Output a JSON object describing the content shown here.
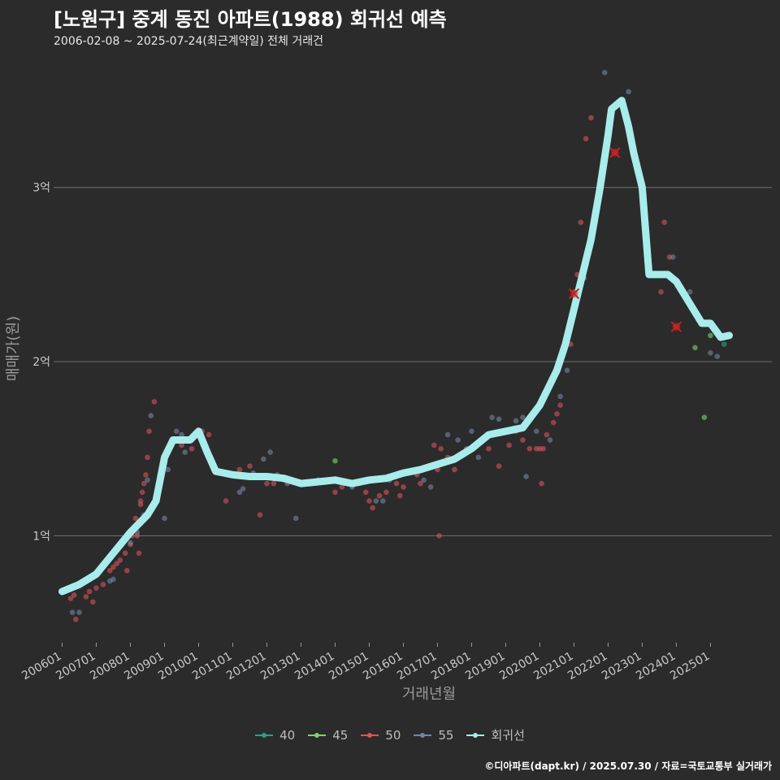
{
  "header": {
    "title": "[노원구] 중계 동진 아파트(1988) 회귀선 예측",
    "subtitle": "2006-02-08 ~ 2025-07-24(최근계약일) 전체 거래건"
  },
  "footer": {
    "text": "©디아파트(dapt.kr) / 2025.07.30 / 자료=국토교통부 실거래가"
  },
  "colors": {
    "background": "#2b2b2b",
    "grid": "#707070",
    "s40": "#2f9e8a",
    "s45": "#7ed36f",
    "s50": "#d9545c",
    "s55": "#7485a3",
    "regression": "#a8ecec",
    "highlight": "#cc1f1f"
  },
  "chart_data": {
    "type": "scatter",
    "title": "[노원구] 중계 동진 아파트(1988) 회귀선 예측",
    "xlabel": "거래년월",
    "ylabel": "매매가(원)",
    "xlim": [
      2005.75,
      2026.8
    ],
    "ylim": [
      0.4,
      3.75
    ],
    "y_unit": "억",
    "grid": true,
    "legend_position": "bottom",
    "x_ticks": [
      {
        "label": "200601",
        "x": 2006.0
      },
      {
        "label": "200701",
        "x": 2007.0
      },
      {
        "label": "200801",
        "x": 2008.0
      },
      {
        "label": "200901",
        "x": 2009.0
      },
      {
        "label": "201001",
        "x": 2010.0
      },
      {
        "label": "201101",
        "x": 2011.0
      },
      {
        "label": "201201",
        "x": 2012.0
      },
      {
        "label": "201301",
        "x": 2013.0
      },
      {
        "label": "201401",
        "x": 2014.0
      },
      {
        "label": "201501",
        "x": 2015.0
      },
      {
        "label": "201601",
        "x": 2016.0
      },
      {
        "label": "201701",
        "x": 2017.0
      },
      {
        "label": "201801",
        "x": 2018.0
      },
      {
        "label": "201901",
        "x": 2019.0
      },
      {
        "label": "202001",
        "x": 2020.0
      },
      {
        "label": "202101",
        "x": 2021.0
      },
      {
        "label": "202201",
        "x": 2022.0
      },
      {
        "label": "202301",
        "x": 2023.0
      },
      {
        "label": "202401",
        "x": 2024.0
      },
      {
        "label": "202501",
        "x": 2025.0
      }
    ],
    "y_ticks": [
      {
        "label": "1억",
        "y": 1
      },
      {
        "label": "2억",
        "y": 2
      },
      {
        "label": "3억",
        "y": 3
      }
    ],
    "legend": [
      {
        "name": "40",
        "key": "s40"
      },
      {
        "name": "45",
        "key": "s45"
      },
      {
        "name": "50",
        "key": "s50"
      },
      {
        "name": "55",
        "key": "s55"
      },
      {
        "name": "회귀선",
        "key": "regression"
      }
    ],
    "series": [
      {
        "name": "40",
        "key": "s40",
        "points": [
          [
            2025.4,
            2.1
          ]
        ]
      },
      {
        "name": "45",
        "key": "s45",
        "points": [
          [
            2014.0,
            1.43
          ],
          [
            2024.55,
            2.08
          ],
          [
            2025.0,
            2.15
          ],
          [
            2024.82,
            1.68
          ]
        ]
      },
      {
        "name": "50",
        "key": "s50",
        "points": [
          [
            2006.25,
            0.64
          ],
          [
            2006.35,
            0.66
          ],
          [
            2006.4,
            0.52
          ],
          [
            2006.5,
            0.72
          ],
          [
            2006.7,
            0.65
          ],
          [
            2006.8,
            0.68
          ],
          [
            2006.9,
            0.62
          ],
          [
            2007.0,
            0.7
          ],
          [
            2007.2,
            0.72
          ],
          [
            2007.4,
            0.8
          ],
          [
            2007.5,
            0.82
          ],
          [
            2007.6,
            0.84
          ],
          [
            2007.7,
            0.86
          ],
          [
            2007.85,
            0.9
          ],
          [
            2007.9,
            0.8
          ],
          [
            2008.0,
            0.95
          ],
          [
            2008.05,
            1.0
          ],
          [
            2008.1,
            1.05
          ],
          [
            2008.15,
            1.1
          ],
          [
            2008.2,
            1.0
          ],
          [
            2008.25,
            0.9
          ],
          [
            2008.3,
            1.2
          ],
          [
            2008.35,
            1.25
          ],
          [
            2008.4,
            1.3
          ],
          [
            2008.45,
            1.35
          ],
          [
            2008.5,
            1.45
          ],
          [
            2008.55,
            1.6
          ],
          [
            2008.7,
            1.77
          ],
          [
            2008.3,
            1.18
          ],
          [
            2009.5,
            1.52
          ],
          [
            2009.8,
            1.5
          ],
          [
            2010.1,
            1.6
          ],
          [
            2010.3,
            1.58
          ],
          [
            2010.8,
            1.2
          ],
          [
            2011.2,
            1.38
          ],
          [
            2011.5,
            1.4
          ],
          [
            2011.8,
            1.12
          ],
          [
            2012.0,
            1.3
          ],
          [
            2012.2,
            1.3
          ],
          [
            2012.5,
            1.32
          ],
          [
            2014.0,
            1.25
          ],
          [
            2014.2,
            1.28
          ],
          [
            2014.7,
            1.3
          ],
          [
            2014.9,
            1.25
          ],
          [
            2015.0,
            1.2
          ],
          [
            2015.1,
            1.16
          ],
          [
            2015.3,
            1.23
          ],
          [
            2015.5,
            1.25
          ],
          [
            2015.8,
            1.3
          ],
          [
            2015.9,
            1.23
          ],
          [
            2016.0,
            1.28
          ],
          [
            2016.4,
            1.35
          ],
          [
            2016.5,
            1.3
          ],
          [
            2016.9,
            1.52
          ],
          [
            2017.0,
            1.38
          ],
          [
            2017.05,
            1.0
          ],
          [
            2017.1,
            1.5
          ],
          [
            2017.3,
            1.45
          ],
          [
            2017.5,
            1.38
          ],
          [
            2018.5,
            1.5
          ],
          [
            2018.8,
            1.4
          ],
          [
            2019.1,
            1.52
          ],
          [
            2019.3,
            1.6
          ],
          [
            2019.5,
            1.55
          ],
          [
            2019.7,
            1.5
          ],
          [
            2019.9,
            1.5
          ],
          [
            2020.0,
            1.5
          ],
          [
            2020.05,
            1.3
          ],
          [
            2020.1,
            1.5
          ],
          [
            2020.2,
            1.58
          ],
          [
            2020.4,
            1.65
          ],
          [
            2020.5,
            1.7
          ],
          [
            2020.6,
            1.75
          ],
          [
            2020.9,
            2.1
          ],
          [
            2021.0,
            2.4
          ],
          [
            2021.1,
            2.5
          ],
          [
            2021.2,
            2.8
          ],
          [
            2021.35,
            3.28
          ],
          [
            2021.5,
            3.4
          ],
          [
            2022.0,
            3.27
          ],
          [
            2022.2,
            3.2
          ],
          [
            2023.55,
            2.4
          ],
          [
            2023.65,
            2.8
          ],
          [
            2023.8,
            2.6
          ],
          [
            2024.0,
            2.2
          ]
        ]
      },
      {
        "name": "55",
        "key": "s55",
        "points": [
          [
            2006.3,
            0.56
          ],
          [
            2006.5,
            0.56
          ],
          [
            2007.4,
            0.74
          ],
          [
            2007.5,
            0.75
          ],
          [
            2008.0,
            0.96
          ],
          [
            2008.2,
            1.02
          ],
          [
            2008.3,
            1.07
          ],
          [
            2008.4,
            1.12
          ],
          [
            2008.5,
            1.32
          ],
          [
            2008.6,
            1.69
          ],
          [
            2009.0,
            1.1
          ],
          [
            2009.1,
            1.38
          ],
          [
            2009.35,
            1.6
          ],
          [
            2009.5,
            1.58
          ],
          [
            2009.6,
            1.48
          ],
          [
            2011.2,
            1.25
          ],
          [
            2011.3,
            1.27
          ],
          [
            2011.6,
            1.36
          ],
          [
            2011.9,
            1.44
          ],
          [
            2012.1,
            1.48
          ],
          [
            2012.3,
            1.35
          ],
          [
            2012.6,
            1.3
          ],
          [
            2012.85,
            1.1
          ],
          [
            2013.5,
            1.32
          ],
          [
            2014.5,
            1.28
          ],
          [
            2015.2,
            1.2
          ],
          [
            2015.4,
            1.2
          ],
          [
            2015.6,
            1.32
          ],
          [
            2016.6,
            1.32
          ],
          [
            2016.8,
            1.28
          ],
          [
            2017.3,
            1.58
          ],
          [
            2017.6,
            1.55
          ],
          [
            2017.85,
            1.5
          ],
          [
            2018.0,
            1.6
          ],
          [
            2018.2,
            1.45
          ],
          [
            2018.6,
            1.68
          ],
          [
            2018.8,
            1.67
          ],
          [
            2019.0,
            1.6
          ],
          [
            2019.3,
            1.66
          ],
          [
            2019.5,
            1.68
          ],
          [
            2019.6,
            1.34
          ],
          [
            2019.9,
            1.6
          ],
          [
            2020.3,
            1.55
          ],
          [
            2020.6,
            1.8
          ],
          [
            2020.8,
            1.95
          ],
          [
            2020.9,
            2.2
          ],
          [
            2021.3,
            2.48
          ],
          [
            2021.9,
            3.66
          ],
          [
            2022.6,
            3.55
          ],
          [
            2023.0,
            3.0
          ],
          [
            2023.5,
            2.5
          ],
          [
            2023.9,
            2.6
          ],
          [
            2024.4,
            2.4
          ],
          [
            2025.0,
            2.05
          ],
          [
            2025.2,
            2.03
          ]
        ]
      }
    ],
    "highlight_points": [
      [
        2021.0,
        2.39
      ],
      [
        2022.2,
        3.2
      ],
      [
        2024.0,
        2.2
      ]
    ],
    "regression_line": [
      [
        2006.0,
        0.68
      ],
      [
        2006.5,
        0.72
      ],
      [
        2007.0,
        0.78
      ],
      [
        2007.5,
        0.9
      ],
      [
        2008.0,
        1.02
      ],
      [
        2008.5,
        1.12
      ],
      [
        2008.75,
        1.2
      ],
      [
        2009.0,
        1.45
      ],
      [
        2009.25,
        1.55
      ],
      [
        2009.5,
        1.55
      ],
      [
        2009.75,
        1.55
      ],
      [
        2010.0,
        1.6
      ],
      [
        2010.25,
        1.48
      ],
      [
        2010.5,
        1.37
      ],
      [
        2011.0,
        1.35
      ],
      [
        2011.5,
        1.34
      ],
      [
        2012.0,
        1.34
      ],
      [
        2012.5,
        1.33
      ],
      [
        2013.0,
        1.3
      ],
      [
        2013.5,
        1.31
      ],
      [
        2014.0,
        1.32
      ],
      [
        2014.5,
        1.3
      ],
      [
        2015.0,
        1.32
      ],
      [
        2015.5,
        1.33
      ],
      [
        2016.0,
        1.36
      ],
      [
        2016.5,
        1.38
      ],
      [
        2017.0,
        1.41
      ],
      [
        2017.5,
        1.44
      ],
      [
        2018.0,
        1.5
      ],
      [
        2018.5,
        1.58
      ],
      [
        2019.0,
        1.6
      ],
      [
        2019.5,
        1.62
      ],
      [
        2020.0,
        1.75
      ],
      [
        2020.5,
        1.95
      ],
      [
        2020.75,
        2.1
      ],
      [
        2021.0,
        2.3
      ],
      [
        2021.25,
        2.5
      ],
      [
        2021.5,
        2.7
      ],
      [
        2021.75,
        2.98
      ],
      [
        2022.0,
        3.3
      ],
      [
        2022.1,
        3.45
      ],
      [
        2022.4,
        3.5
      ],
      [
        2022.6,
        3.35
      ],
      [
        2022.75,
        3.2
      ],
      [
        2023.0,
        3.0
      ],
      [
        2023.2,
        2.5
      ],
      [
        2023.5,
        2.5
      ],
      [
        2023.75,
        2.5
      ],
      [
        2024.0,
        2.46
      ],
      [
        2024.25,
        2.38
      ],
      [
        2024.5,
        2.3
      ],
      [
        2024.75,
        2.22
      ],
      [
        2025.0,
        2.22
      ],
      [
        2025.3,
        2.14
      ],
      [
        2025.55,
        2.15
      ]
    ]
  }
}
